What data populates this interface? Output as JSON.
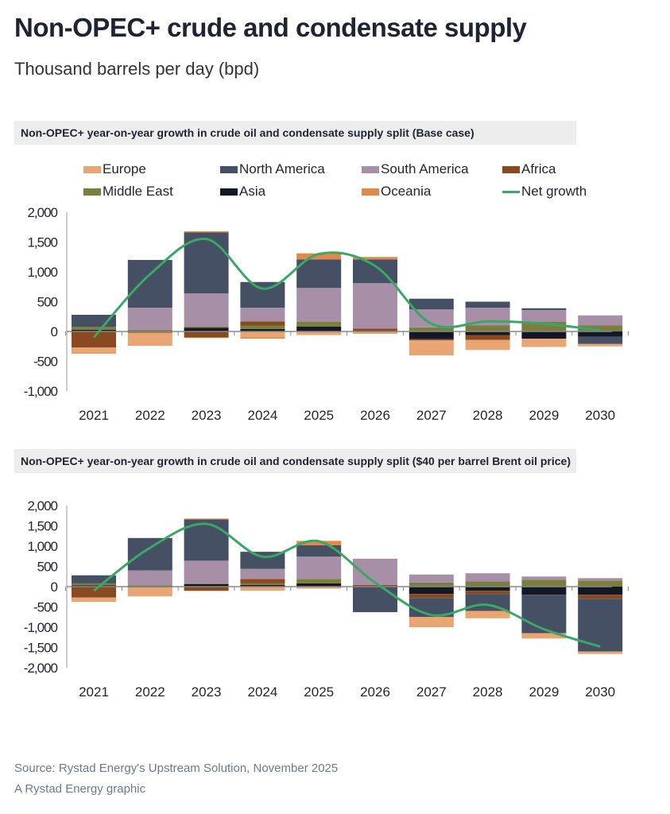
{
  "title": "Non-OPEC+ crude and condensate supply",
  "subtitle": "Thousand barrels per day (bpd)",
  "legend": [
    {
      "name": "Europe",
      "color": "#e9a572"
    },
    {
      "name": "North America",
      "color": "#455064"
    },
    {
      "name": "South America",
      "color": "#a78fa8"
    },
    {
      "name": "Africa",
      "color": "#8a4a1f"
    },
    {
      "name": "Middle East",
      "color": "#7b7e3c"
    },
    {
      "name": "Asia",
      "color": "#121826"
    },
    {
      "name": "Oceania",
      "color": "#e0894a"
    },
    {
      "name": "Net growth",
      "color": "#3aa865"
    }
  ],
  "chart_data": [
    {
      "type": "bar",
      "stacked": true,
      "title": "Non-OPEC+ year-on-year growth in crude oil and condensate supply split (Base case)",
      "categories": [
        "2021",
        "2022",
        "2023",
        "2024",
        "2025",
        "2026",
        "2027",
        "2028",
        "2029",
        "2030"
      ],
      "ylim": [
        -1000,
        2000
      ],
      "yticks": [
        "2,000",
        "1,500",
        "1,000",
        "500",
        "0",
        "-500",
        "-1,000"
      ],
      "ytick_values": [
        2000,
        1500,
        1000,
        500,
        0,
        -500,
        -1000
      ],
      "series": [
        {
          "name": "Asia",
          "values": [
            30,
            0,
            60,
            40,
            80,
            0,
            -130,
            -60,
            -120,
            -90
          ]
        },
        {
          "name": "Middle East",
          "values": [
            50,
            30,
            20,
            60,
            80,
            0,
            70,
            100,
            160,
            100
          ]
        },
        {
          "name": "Africa",
          "values": [
            -270,
            -20,
            -100,
            70,
            0,
            50,
            -20,
            -80,
            0,
            0
          ]
        },
        {
          "name": "South America",
          "values": [
            0,
            370,
            560,
            230,
            570,
            760,
            300,
            300,
            200,
            170
          ]
        },
        {
          "name": "North America",
          "values": [
            200,
            800,
            1020,
            430,
            480,
            400,
            180,
            100,
            30,
            -120
          ]
        },
        {
          "name": "Europe",
          "values": [
            -80,
            -220,
            -10,
            -100,
            -60,
            -40,
            -250,
            -170,
            -140,
            -40
          ]
        },
        {
          "name": "Oceania",
          "values": [
            -20,
            0,
            20,
            -20,
            100,
            40,
            0,
            0,
            0,
            0
          ]
        }
      ],
      "net_growth": [
        -100,
        960,
        1550,
        720,
        1300,
        1100,
        130,
        170,
        130,
        20
      ]
    },
    {
      "type": "bar",
      "stacked": true,
      "title": "Non-OPEC+ year-on-year growth in crude oil and condensate supply split ($40 per barrel Brent oil price)",
      "categories": [
        "2021",
        "2022",
        "2023",
        "2024",
        "2025",
        "2026",
        "2027",
        "2028",
        "2029",
        "2030"
      ],
      "ylim": [
        -2000,
        2000
      ],
      "yticks": [
        "2,000",
        "1,500",
        "1,000",
        "500",
        "0",
        "-500",
        "-1,000",
        "-1,500",
        "-2,000"
      ],
      "ytick_values": [
        2000,
        1500,
        1000,
        500,
        0,
        -500,
        -1000,
        -1500,
        -2000
      ],
      "series": [
        {
          "name": "Asia",
          "values": [
            30,
            0,
            60,
            40,
            80,
            0,
            -180,
            -100,
            -200,
            -200
          ]
        },
        {
          "name": "Middle East",
          "values": [
            50,
            30,
            20,
            40,
            110,
            0,
            100,
            130,
            170,
            150
          ]
        },
        {
          "name": "Africa",
          "values": [
            -270,
            -20,
            -100,
            110,
            0,
            40,
            -100,
            -80,
            0,
            -100
          ]
        },
        {
          "name": "South America",
          "values": [
            0,
            370,
            560,
            250,
            550,
            650,
            200,
            200,
            80,
            60
          ]
        },
        {
          "name": "North America",
          "values": [
            200,
            800,
            1020,
            420,
            280,
            -630,
            -470,
            -420,
            -950,
            -1300
          ]
        },
        {
          "name": "Europe",
          "values": [
            -80,
            -220,
            -10,
            -100,
            -50,
            0,
            -250,
            -180,
            -130,
            -60
          ]
        },
        {
          "name": "Oceania",
          "values": [
            -20,
            0,
            20,
            0,
            110,
            0,
            0,
            0,
            0,
            0
          ]
        }
      ],
      "net_growth": [
        -100,
        960,
        1550,
        740,
        1120,
        100,
        -700,
        -450,
        -1050,
        -1480
      ]
    }
  ],
  "source": "Source: Rystad Energy's Upstream Solution, November 2025",
  "credit": "A Rystad Energy graphic"
}
